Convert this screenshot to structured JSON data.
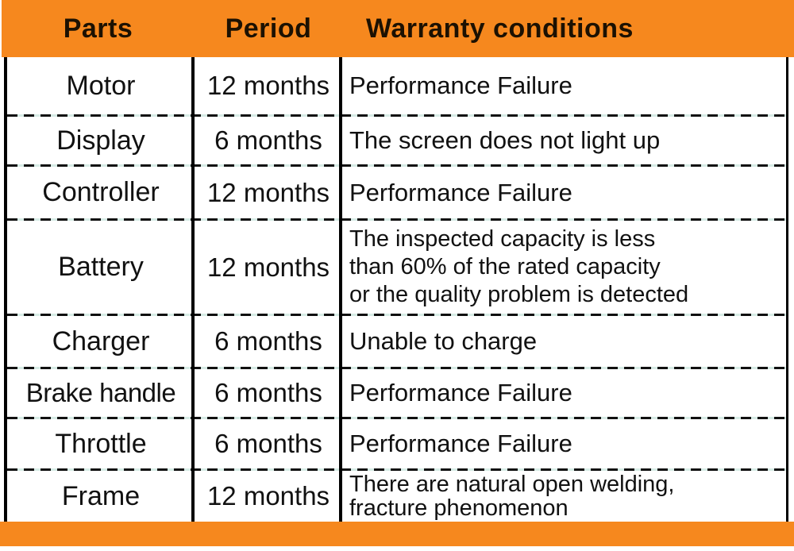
{
  "header": {
    "parts": "Parts",
    "period": "Period",
    "warranty": "Warranty conditions"
  },
  "rows": [
    {
      "part": "Motor",
      "period": "12 months",
      "condition": "Performance Failure"
    },
    {
      "part": "Display",
      "period": "6 months",
      "condition": "The screen does not light up"
    },
    {
      "part": "Controller",
      "period": "12 months",
      "condition": "Performance Failure"
    },
    {
      "part": "Battery",
      "period": "12 months",
      "condition": "The inspected capacity is less\nthan 60% of the rated capacity\nor the quality problem is detected"
    },
    {
      "part": "Charger",
      "period": "6 months",
      "condition": "Unable to charge"
    },
    {
      "part": "Brake handle",
      "period": "6 months",
      "condition": "Performance Failure"
    },
    {
      "part": "Throttle",
      "period": "6 months",
      "condition": "Performance Failure"
    },
    {
      "part": "Frame",
      "period": "12 months",
      "condition": "There are natural open welding,\nfracture phenomenon"
    }
  ],
  "colors": {
    "accent_orange": "#F6881E",
    "text": "#111111",
    "line": "#000000",
    "dash_gap_tint": "#D7ECE6"
  }
}
